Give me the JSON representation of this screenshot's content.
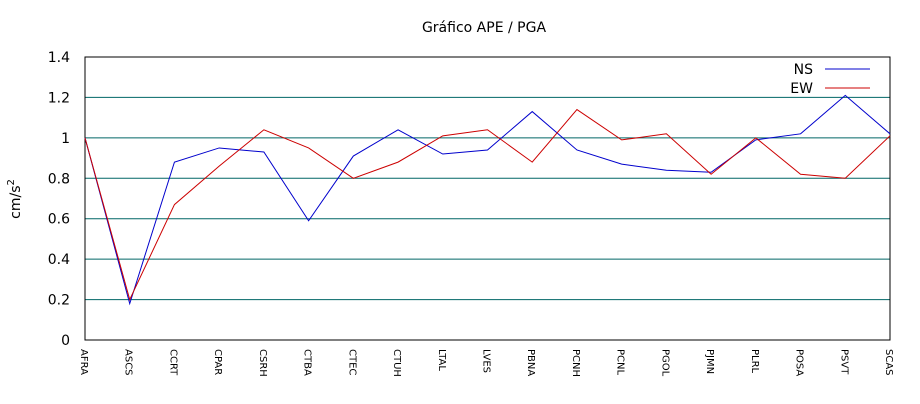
{
  "chart_data": {
    "type": "line",
    "title": "Gráfico  APE / PGA",
    "xlabel": "",
    "ylabel": "cm/s",
    "ylabel_sup": "2",
    "ylim": [
      0,
      1.4
    ],
    "yticks": [
      "0",
      "0.2",
      "0.4",
      "0.6",
      "0.8",
      "1",
      "1.2",
      "1.4"
    ],
    "grid": true,
    "legend_position": "top-right",
    "categories": [
      "AFRA",
      "ASCS",
      "CCRT",
      "CPAR",
      "CSRH",
      "CTBA",
      "CTEC",
      "CTUH",
      "LTAL",
      "LVES",
      "PBNA",
      "PCNH",
      "PCNL",
      "PGOL",
      "PJMN",
      "PLRL",
      "POSA",
      "PSVT",
      "SCAS"
    ],
    "series": [
      {
        "name": "NS",
        "color": "#0000cc",
        "values": [
          1.0,
          0.18,
          0.88,
          0.95,
          0.93,
          0.59,
          0.91,
          1.04,
          0.92,
          0.94,
          1.13,
          0.94,
          0.87,
          0.84,
          0.83,
          0.99,
          1.02,
          1.21,
          1.02
        ]
      },
      {
        "name": "EW",
        "color": "#cc0000",
        "values": [
          1.0,
          0.2,
          0.67,
          0.86,
          1.04,
          0.95,
          0.8,
          0.88,
          1.01,
          1.04,
          0.88,
          1.14,
          0.99,
          1.02,
          0.82,
          1.0,
          0.82,
          0.8,
          1.01
        ]
      }
    ]
  },
  "colors": {
    "grid": "#006666",
    "axis": "#000000"
  }
}
